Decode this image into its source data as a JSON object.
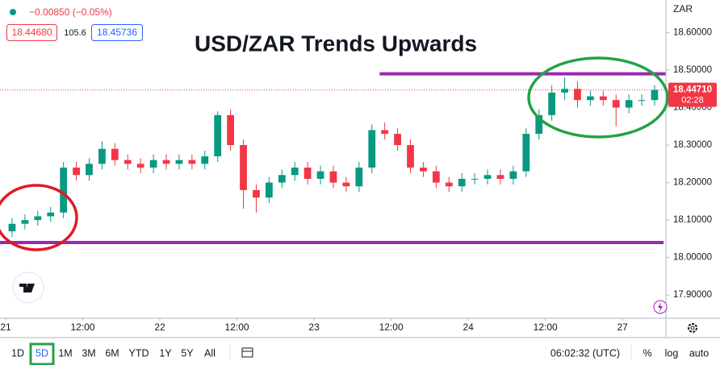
{
  "chart_data": {
    "type": "candlestick",
    "title": "USD/ZAR Trends Upwards",
    "currency": "ZAR",
    "legend": {
      "change": "−0.00850 (−0.05%)",
      "bid": "18.44680",
      "spread": "105.6",
      "ask": "18.45736"
    },
    "x": [
      1,
      3,
      5,
      7,
      9,
      11,
      13,
      15,
      17,
      19,
      21,
      23,
      25,
      27,
      29,
      31,
      33,
      35,
      37,
      39,
      41,
      43,
      45,
      47,
      49,
      51,
      53,
      55,
      57,
      59,
      61,
      63,
      65,
      67,
      69,
      71,
      73,
      75,
      77,
      79,
      81,
      83,
      85,
      87,
      89,
      91,
      93,
      95,
      97,
      99,
      101
    ],
    "open": [
      18.07,
      18.09,
      18.1,
      18.11,
      18.12,
      18.24,
      18.22,
      18.25,
      18.29,
      18.26,
      18.25,
      18.24,
      18.26,
      18.25,
      18.26,
      18.25,
      18.27,
      18.38,
      18.3,
      18.18,
      18.16,
      18.2,
      18.22,
      18.24,
      18.21,
      18.23,
      18.2,
      18.19,
      18.24,
      18.34,
      18.33,
      18.3,
      18.24,
      18.23,
      18.2,
      18.19,
      18.21,
      18.21,
      18.22,
      18.21,
      18.23,
      18.33,
      18.38,
      18.44,
      18.45,
      18.42,
      18.43,
      18.42,
      18.4,
      18.42,
      18.42
    ],
    "high": [
      18.105,
      18.115,
      18.125,
      18.135,
      18.255,
      18.255,
      18.265,
      18.31,
      18.305,
      18.275,
      18.265,
      18.275,
      18.275,
      18.275,
      18.275,
      18.285,
      18.39,
      18.395,
      18.315,
      18.195,
      18.215,
      18.235,
      18.255,
      18.255,
      18.245,
      18.245,
      18.215,
      18.255,
      18.355,
      18.36,
      18.345,
      18.315,
      18.255,
      18.245,
      18.215,
      18.225,
      18.225,
      18.235,
      18.235,
      18.245,
      18.345,
      18.395,
      18.46,
      18.48,
      18.47,
      18.445,
      18.445,
      18.435,
      18.435,
      18.435,
      18.46
    ],
    "low": [
      18.055,
      18.075,
      18.085,
      18.095,
      18.105,
      18.205,
      18.205,
      18.235,
      18.245,
      18.235,
      18.225,
      18.225,
      18.235,
      18.235,
      18.235,
      18.235,
      18.255,
      18.285,
      18.13,
      18.12,
      18.145,
      18.185,
      18.205,
      18.195,
      18.195,
      18.185,
      18.175,
      18.175,
      18.225,
      18.315,
      18.285,
      18.225,
      18.215,
      18.185,
      18.175,
      18.175,
      18.195,
      18.195,
      18.195,
      18.195,
      18.215,
      18.315,
      18.365,
      18.42,
      18.4,
      18.405,
      18.405,
      18.35,
      18.385,
      18.405,
      18.405
    ],
    "close": [
      18.09,
      18.1,
      18.11,
      18.12,
      18.24,
      18.22,
      18.25,
      18.29,
      18.26,
      18.25,
      18.24,
      18.26,
      18.25,
      18.26,
      18.25,
      18.27,
      18.38,
      18.3,
      18.18,
      18.16,
      18.2,
      18.22,
      18.24,
      18.21,
      18.23,
      18.2,
      18.19,
      18.24,
      18.34,
      18.33,
      18.3,
      18.24,
      18.23,
      18.2,
      18.19,
      18.21,
      18.21,
      18.22,
      18.21,
      18.23,
      18.33,
      18.38,
      18.44,
      18.45,
      18.42,
      18.43,
      18.42,
      18.4,
      18.42,
      18.42,
      18.447
    ],
    "up_color": "#089981",
    "down_color": "#f23645",
    "xlim": [
      -0.88,
      102.76
    ],
    "xticks": [
      {
        "value": 0,
        "label": "21"
      },
      {
        "value": 12,
        "label": "12:00"
      },
      {
        "value": 24,
        "label": "22"
      },
      {
        "value": 36,
        "label": "12:00"
      },
      {
        "value": 48,
        "label": "23"
      },
      {
        "value": 60,
        "label": "12:00"
      },
      {
        "value": 72,
        "label": "24"
      },
      {
        "value": 84,
        "label": "12:00"
      },
      {
        "value": 96,
        "label": "27"
      }
    ],
    "ylim": [
      17.838,
      18.687
    ],
    "yticks": [
      {
        "value": 17.9,
        "label": "17.90000"
      },
      {
        "value": 18.0,
        "label": "18.00000"
      },
      {
        "value": 18.1,
        "label": "18.10000"
      },
      {
        "value": 18.2,
        "label": "18.20000"
      },
      {
        "value": 18.3,
        "label": "18.30000"
      },
      {
        "value": 18.4,
        "label": "18.40000"
      },
      {
        "value": 18.5,
        "label": "18.50000"
      },
      {
        "value": 18.6,
        "label": "18.60000"
      }
    ],
    "grid": false,
    "hlines": [
      {
        "value": 18.49,
        "color": "#9c27b0",
        "x": [
          58.2,
          102.76
        ]
      },
      {
        "value": 18.04,
        "color": "#9c27b0",
        "x": [
          -0.88,
          102.4
        ]
      }
    ],
    "last_price": {
      "value": 18.4471,
      "label": "18.44710",
      "countdown": "02:28",
      "color": "#f23645"
    }
  },
  "toolbar": {
    "ranges": [
      "1D",
      "5D",
      "1M",
      "3M",
      "6M",
      "YTD",
      "1Y",
      "5Y",
      "All"
    ],
    "active": 1,
    "clock": "06:02:32 (UTC)",
    "options": [
      "%",
      "log",
      "auto"
    ]
  }
}
